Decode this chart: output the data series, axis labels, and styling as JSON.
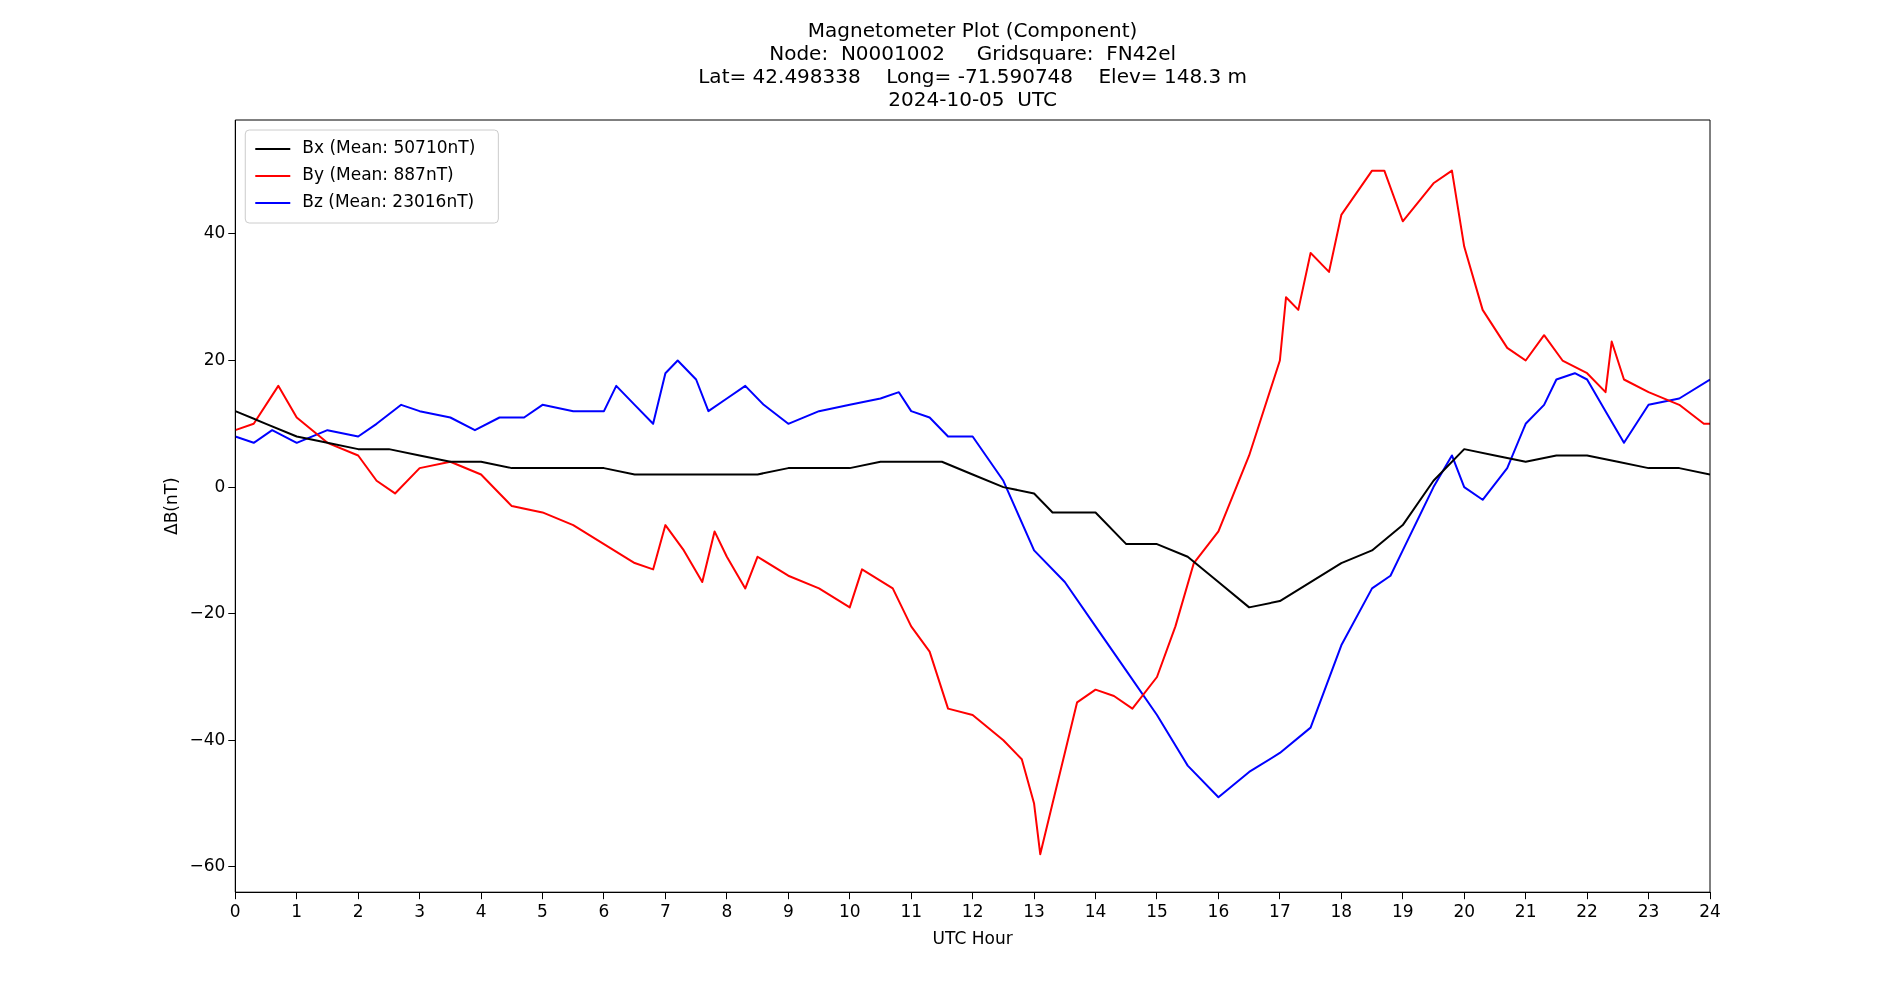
{
  "chart_data": {
    "type": "line",
    "title": "Magnetometer Plot (Component)",
    "subtitle": "Node:  N0001002     Gridsquare:  FN42el\nLat= 42.498338    Long= -71.590748    Elev= 148.3 m\n2024-10-05  UTC",
    "xlabel": "UTC Hour",
    "ylabel": "ΔB(nT)",
    "xlim": [
      0,
      24
    ],
    "xticks": [
      0,
      1,
      2,
      3,
      4,
      5,
      6,
      7,
      8,
      9,
      10,
      11,
      12,
      13,
      14,
      15,
      16,
      17,
      18,
      19,
      20,
      21,
      22,
      23,
      24
    ],
    "ylim": [
      -64,
      58
    ],
    "yticks": [
      {
        "value": -60,
        "label": "−60"
      },
      {
        "value": -40,
        "label": "−40"
      },
      {
        "value": -20,
        "label": "−20"
      },
      0,
      20,
      40
    ],
    "grid": false,
    "legend": "top left",
    "marker": "none",
    "line_style": "solid",
    "series": [
      {
        "name": "Bx (Mean: 50710nT)",
        "color": "#000000",
        "x": [
          0,
          0.5,
          1,
          1.5,
          2,
          2.5,
          3,
          3.5,
          4,
          4.5,
          5,
          5.5,
          6,
          6.5,
          7,
          7.5,
          8,
          8.5,
          9,
          9.5,
          10,
          10.5,
          11,
          11.5,
          12,
          12.5,
          13,
          13.3,
          14,
          14.5,
          15,
          15.5,
          16,
          16.5,
          17,
          17.5,
          18,
          18.5,
          19,
          19.5,
          20,
          20.5,
          21,
          21.5,
          22,
          22.5,
          23,
          23.5,
          24
        ],
        "values": [
          12,
          10,
          8,
          7,
          6,
          6,
          5,
          4,
          4,
          3,
          3,
          3,
          3,
          2,
          2,
          2,
          2,
          2,
          3,
          3,
          3,
          4,
          4,
          4,
          2,
          0,
          -1,
          -4,
          -4,
          -9,
          -9,
          -11,
          -15,
          -19,
          -18,
          -15,
          -12,
          -10,
          -6,
          1,
          6,
          5,
          4,
          5,
          5,
          4,
          3,
          3,
          2
        ]
      },
      {
        "name": "By (Mean: 887nT)",
        "color": "#ff0000",
        "x": [
          0,
          0.3,
          0.7,
          1,
          1.5,
          2,
          2.3,
          2.6,
          3,
          3.5,
          4,
          4.3,
          4.5,
          5,
          5.5,
          6,
          6.5,
          6.8,
          7,
          7.3,
          7.6,
          7.8,
          8,
          8.3,
          8.5,
          9,
          9.5,
          10,
          10.2,
          10.7,
          11,
          11.3,
          11.6,
          12,
          12.5,
          12.8,
          13,
          13.1,
          13.3,
          13.5,
          13.7,
          14,
          14.3,
          14.6,
          15,
          15.3,
          15.6,
          16,
          16.5,
          17,
          17.1,
          17.3,
          17.5,
          17.8,
          18,
          18.5,
          18.7,
          19,
          19.5,
          19.8,
          20,
          20.3,
          20.7,
          21,
          21.3,
          21.6,
          22,
          22.3,
          22.4,
          22.6,
          23,
          23.5,
          23.9,
          24
        ],
        "values": [
          9,
          10,
          16,
          11,
          7,
          5,
          1,
          -1,
          3,
          4,
          2,
          -1,
          -3,
          -4,
          -6,
          -9,
          -12,
          -13,
          -6,
          -10,
          -15,
          -7,
          -11,
          -16,
          -11,
          -14,
          -16,
          -19,
          -13,
          -16,
          -22,
          -26,
          -35,
          -36,
          -40,
          -43,
          -50,
          -58,
          -50,
          -42,
          -34,
          -32,
          -33,
          -35,
          -30,
          -22,
          -12,
          -7,
          5,
          20,
          30,
          28,
          37,
          34,
          43,
          50,
          50,
          42,
          48,
          50,
          38,
          28,
          22,
          20,
          24,
          20,
          18,
          15,
          23,
          17,
          15,
          13,
          10,
          10
        ]
      },
      {
        "name": "Bz (Mean: 23016nT)",
        "color": "#0000ff",
        "x": [
          0,
          0.3,
          0.6,
          1,
          1.5,
          2,
          2.3,
          2.7,
          3,
          3.5,
          3.9,
          4.3,
          4.7,
          5,
          5.5,
          6,
          6.2,
          6.5,
          6.8,
          7,
          7.2,
          7.5,
          7.7,
          8,
          8.3,
          8.6,
          9,
          9.5,
          10,
          10.5,
          10.8,
          11,
          11.3,
          11.6,
          12,
          12.5,
          13,
          13.5,
          14,
          14.5,
          15,
          15.5,
          16,
          16.5,
          17,
          17.5,
          18,
          18.5,
          18.8,
          19,
          19.5,
          19.8,
          20,
          20.3,
          20.7,
          21,
          21.3,
          21.5,
          21.8,
          22,
          22.3,
          22.6,
          23,
          23.5,
          24
        ],
        "values": [
          8,
          7,
          9,
          7,
          9,
          8,
          10,
          13,
          12,
          11,
          9,
          11,
          11,
          13,
          12,
          12,
          16,
          13,
          10,
          18,
          20,
          17,
          12,
          14,
          16,
          13,
          10,
          12,
          13,
          14,
          15,
          12,
          11,
          8,
          8,
          1,
          -10,
          -15,
          -22,
          -29,
          -36,
          -44,
          -49,
          -45,
          -42,
          -38,
          -25,
          -16,
          -14,
          -10,
          0,
          5,
          0,
          -2,
          3,
          10,
          13,
          17,
          18,
          17,
          12,
          7,
          13,
          14,
          17
        ]
      }
    ]
  }
}
